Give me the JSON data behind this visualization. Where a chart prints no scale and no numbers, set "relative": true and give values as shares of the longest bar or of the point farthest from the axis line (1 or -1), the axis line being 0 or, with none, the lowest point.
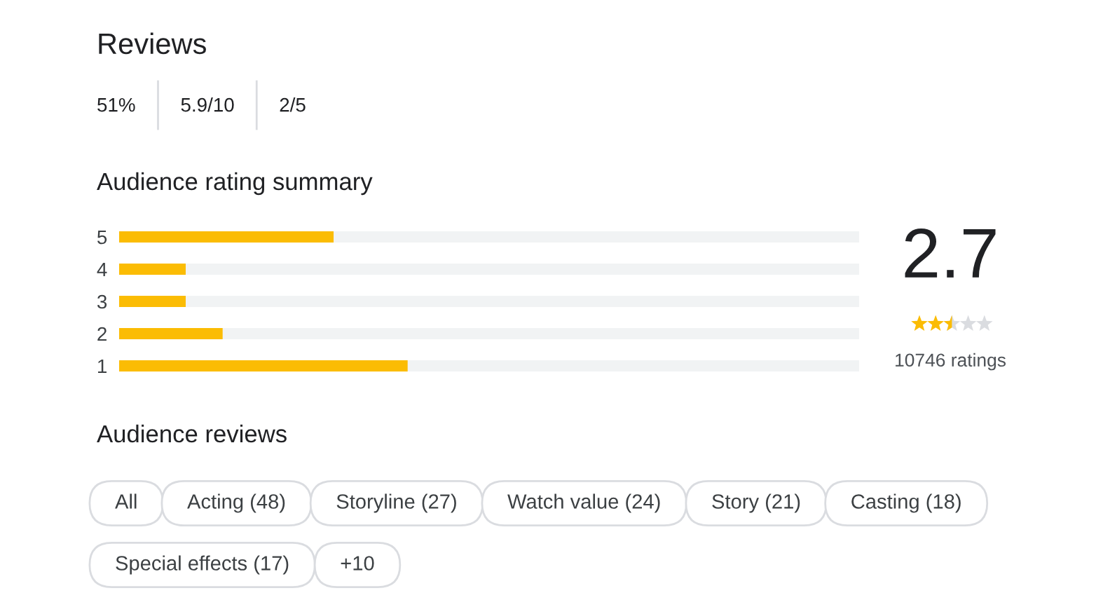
{
  "chart_data": {
    "type": "bar",
    "orientation": "horizontal",
    "stacked": true,
    "relative": true,
    "title": "Audience rating summary",
    "categories": [
      "5",
      "4",
      "3",
      "2",
      "1"
    ],
    "series": [
      {
        "color": "#fbbc04",
        "values": [
          0.29,
          0.09,
          0.09,
          0.14,
          0.39
        ]
      },
      {
        "color": "#f1f3f4",
        "values": [
          0.71,
          0.91,
          0.91,
          0.86,
          0.61
        ]
      }
    ],
    "annotations": [
      "Reviews",
      "51%",
      "5.9/10",
      "2/5",
      "2.7",
      "10746 ratings",
      "Audience reviews",
      "All",
      "Acting (48)",
      "Storyline (27)",
      "Watch value (24)",
      "Story (21)",
      "Casting (18)",
      "Special effects (17)",
      "+10"
    ]
  }
}
